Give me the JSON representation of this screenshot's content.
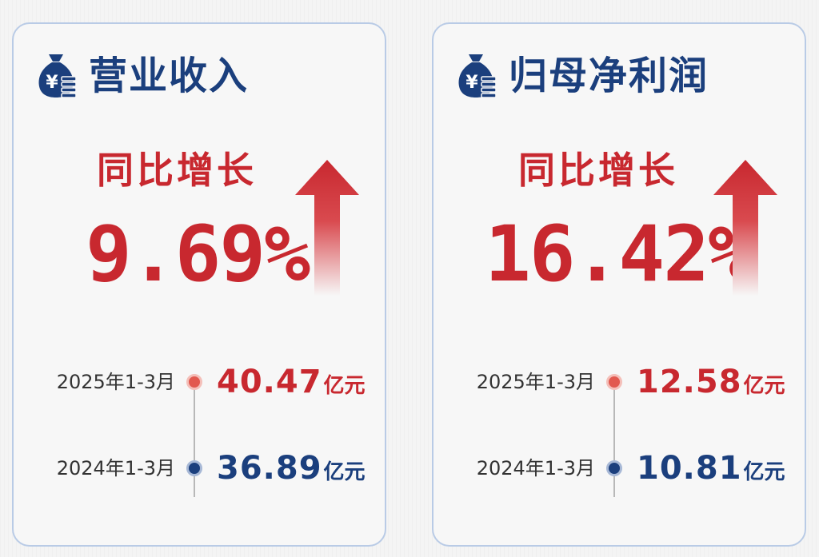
{
  "colors": {
    "accent_red": "#c8282f",
    "accent_blue": "#1b3f7d",
    "card_border": "#b9cbe6"
  },
  "cards": [
    {
      "icon": "money-bag-yen-icon",
      "title": "营业收入",
      "growth_label": "同比增长",
      "growth_value": "9.69%",
      "current": {
        "period": "2025年1-3月",
        "amount": "40.47",
        "unit": "亿元"
      },
      "prior": {
        "period": "2024年1-3月",
        "amount": "36.89",
        "unit": "亿元"
      }
    },
    {
      "icon": "money-bag-yen-icon",
      "title": "归母净利润",
      "growth_label": "同比增长",
      "growth_value": "16.42%",
      "current": {
        "period": "2025年1-3月",
        "amount": "12.58",
        "unit": "亿元"
      },
      "prior": {
        "period": "2024年1-3月",
        "amount": "10.81",
        "unit": "亿元"
      }
    }
  ]
}
